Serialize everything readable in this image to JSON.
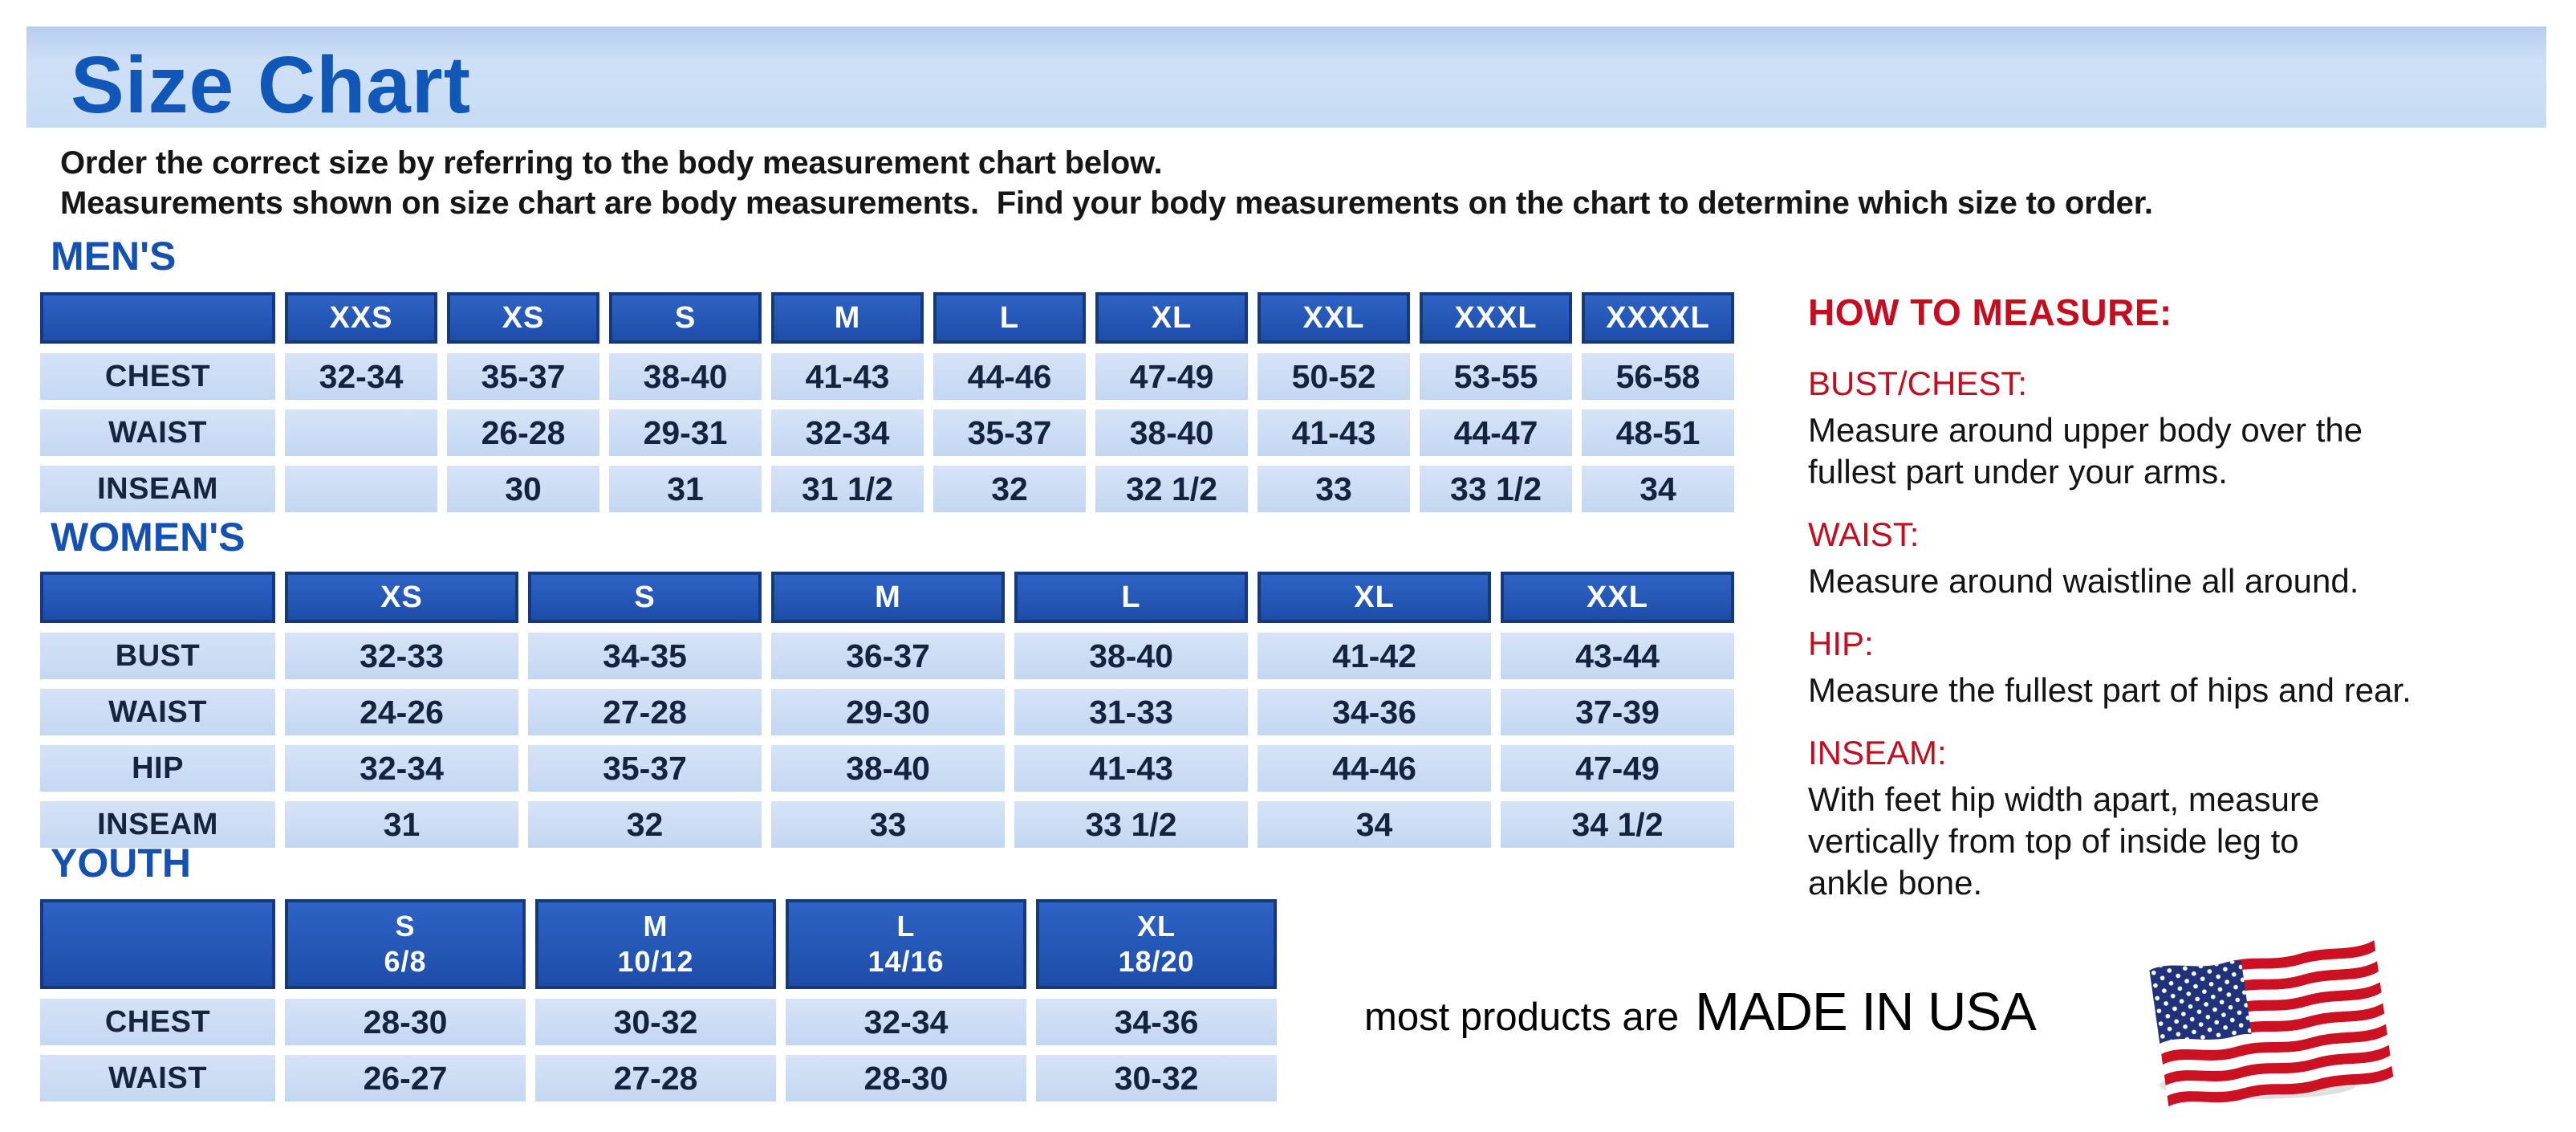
{
  "banner": {
    "title": "Size Chart"
  },
  "intro": {
    "line1": "Order the correct size by referring to the body measurement chart below.",
    "line2": "Measurements shown on size chart are body measurements.  Find your body measurements on the chart to determine which size to order."
  },
  "sections": {
    "mens": {
      "heading": "MEN'S",
      "columns": [
        "XXS",
        "XS",
        "S",
        "M",
        "L",
        "XL",
        "XXL",
        "XXXL",
        "XXXXL"
      ],
      "rows": [
        {
          "label": "CHEST",
          "values": [
            "32-34",
            "35-37",
            "38-40",
            "41-43",
            "44-46",
            "47-49",
            "50-52",
            "53-55",
            "56-58"
          ]
        },
        {
          "label": "WAIST",
          "values": [
            "",
            "26-28",
            "29-31",
            "32-34",
            "35-37",
            "38-40",
            "41-43",
            "44-47",
            "48-51"
          ]
        },
        {
          "label": "INSEAM",
          "values": [
            "",
            "30",
            "31",
            "31 1/2",
            "32",
            "32 1/2",
            "33",
            "33 1/2",
            "34"
          ]
        }
      ]
    },
    "womens": {
      "heading": "WOMEN'S",
      "columns": [
        "XS",
        "S",
        "M",
        "L",
        "XL",
        "XXL"
      ],
      "rows": [
        {
          "label": "BUST",
          "values": [
            "32-33",
            "34-35",
            "36-37",
            "38-40",
            "41-42",
            "43-44"
          ]
        },
        {
          "label": "WAIST",
          "values": [
            "24-26",
            "27-28",
            "29-30",
            "31-33",
            "34-36",
            "37-39"
          ]
        },
        {
          "label": "HIP",
          "values": [
            "32-34",
            "35-37",
            "38-40",
            "41-43",
            "44-46",
            "47-49"
          ]
        },
        {
          "label": "INSEAM",
          "values": [
            "31",
            "32",
            "33",
            "33 1/2",
            "34",
            "34 1/2"
          ]
        }
      ]
    },
    "youth": {
      "heading": "YOUTH",
      "columns": [
        {
          "size": "S",
          "range": "6/8"
        },
        {
          "size": "M",
          "range": "10/12"
        },
        {
          "size": "L",
          "range": "14/16"
        },
        {
          "size": "XL",
          "range": "18/20"
        }
      ],
      "rows": [
        {
          "label": "CHEST",
          "values": [
            "28-30",
            "30-32",
            "32-34",
            "34-36"
          ]
        },
        {
          "label": "WAIST",
          "values": [
            "26-27",
            "27-28",
            "28-30",
            "30-32"
          ]
        }
      ]
    }
  },
  "how_to_measure": {
    "heading": "HOW TO MEASURE:",
    "items": [
      {
        "label": "BUST/CHEST:",
        "text": "Measure around upper body over the\nfullest part under your arms."
      },
      {
        "label": "WAIST:",
        "text": "Measure around waistline all around."
      },
      {
        "label": "HIP:",
        "text": "Measure the fullest part of hips and rear."
      },
      {
        "label": "INSEAM:",
        "text": "With feet hip width apart, measure\nvertically from top of inside leg to\nankle bone."
      }
    ]
  },
  "footer": {
    "prefix": "most products are",
    "emphasis": "MADE IN USA",
    "flag_icon": "us-flag-icon"
  },
  "colors": {
    "title_blue": "#1157b8",
    "heading_blue": "#1551b2",
    "header_blue": "#1e51ad",
    "cell_blue": "#c8dcf5",
    "banner_blue": "#c3d9f3",
    "accent_red": "#c50d20",
    "flag_red": "#cc1122",
    "flag_navy": "#20337a"
  }
}
